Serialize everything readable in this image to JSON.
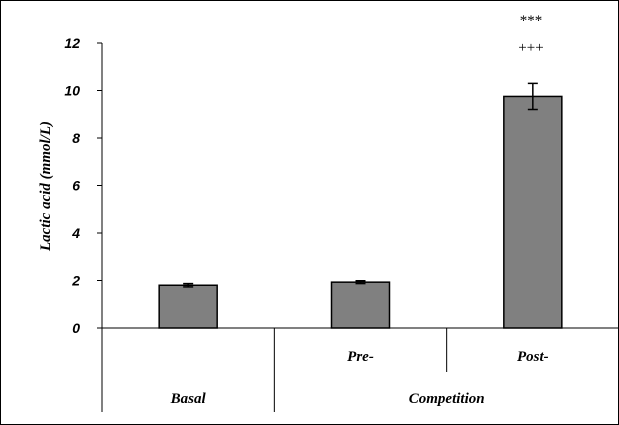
{
  "chart_data": {
    "type": "bar",
    "ylabel": "Lactic acid (mmol/L)",
    "ylim": [
      0,
      12
    ],
    "yticks": [
      "0",
      "2",
      "4",
      "6",
      "8",
      "10",
      "12"
    ],
    "grid": false,
    "categories": [
      "Basal",
      "Pre-",
      "Post-"
    ],
    "group_label": "Competition",
    "values": [
      1.8,
      1.93,
      9.75
    ],
    "errors": [
      0.07,
      0.06,
      0.55
    ],
    "annotations": [
      "***",
      "+++"
    ],
    "colors": {
      "bar": "#808080",
      "bar_stroke": "#000000"
    }
  }
}
